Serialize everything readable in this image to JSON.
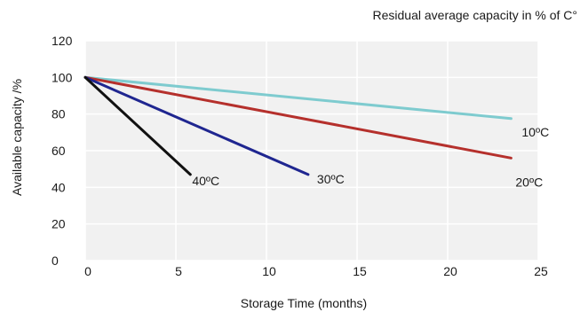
{
  "chart_data": {
    "type": "line",
    "title": "Residual average capacity in % of C°",
    "xlabel": "Storage Time (months)",
    "ylabel": "Available capacity /%",
    "xlim": [
      0,
      25
    ],
    "ylim": [
      0,
      120
    ],
    "x_ticks": [
      0,
      5,
      10,
      15,
      20,
      25
    ],
    "y_ticks": [
      0,
      20,
      40,
      60,
      80,
      100,
      120
    ],
    "x_tick_labels": [
      "0",
      "5",
      "10",
      "15",
      "20",
      "25"
    ],
    "y_tick_labels": [
      "0",
      "20",
      "40",
      "60",
      "80",
      "100",
      "120"
    ],
    "grid": true,
    "series": [
      {
        "name": "10ºC",
        "color": "#7ecbcf",
        "x": [
          0,
          23.5
        ],
        "y": [
          100,
          77.5
        ]
      },
      {
        "name": "20ºC",
        "color": "#b5302c",
        "x": [
          0,
          23.5
        ],
        "y": [
          100,
          56
        ]
      },
      {
        "name": "30ºC",
        "color": "#1f2690",
        "x": [
          0,
          12.3
        ],
        "y": [
          100,
          47
        ]
      },
      {
        "name": "40ºC",
        "color": "#111111",
        "x": [
          0,
          5.8
        ],
        "y": [
          100,
          47
        ]
      }
    ]
  }
}
